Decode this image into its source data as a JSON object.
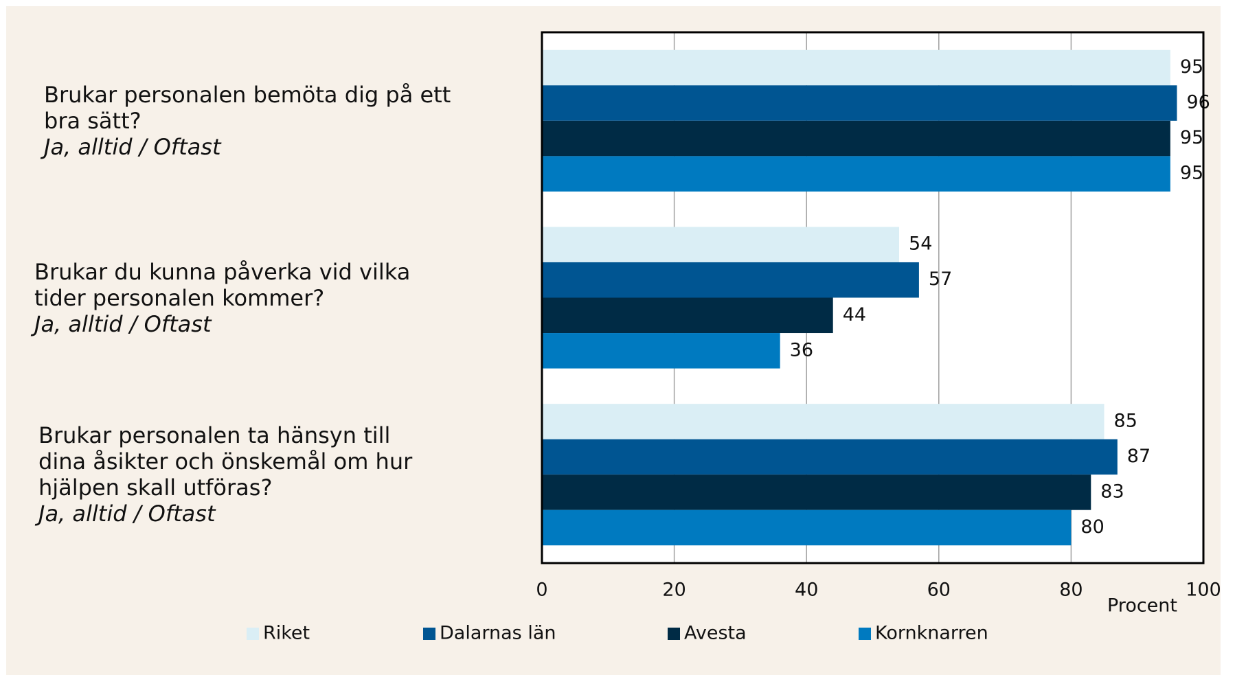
{
  "chart_data": {
    "type": "bar",
    "orientation": "horizontal",
    "categories": [
      "Brukar personalen bemöta dig på ett bra sätt?",
      "Brukar du kunna påverka vid vilka tider personalen kommer?",
      "Brukar personalen ta hänsyn till dina åsikter och önskemål om hur hjälpen skall utföras?"
    ],
    "category_notes": [
      "Ja, alltid / Oftast",
      "Ja, alltid / Oftast",
      "Ja, alltid / Oftast"
    ],
    "series": [
      {
        "name": "Riket",
        "color": "#daeef5",
        "values": [
          95,
          54,
          85
        ]
      },
      {
        "name": "Dalarnas län",
        "color": "#005592",
        "values": [
          96,
          57,
          87
        ]
      },
      {
        "name": "Avesta",
        "color": "#002b45",
        "values": [
          95,
          44,
          83
        ]
      },
      {
        "name": "Kornknarren",
        "color": "#007ac0",
        "values": [
          95,
          36,
          80
        ]
      }
    ],
    "xlim": [
      0,
      100
    ],
    "xticks": [
      0,
      20,
      40,
      60,
      80,
      100
    ],
    "x_label": "Procent",
    "grid": true
  }
}
